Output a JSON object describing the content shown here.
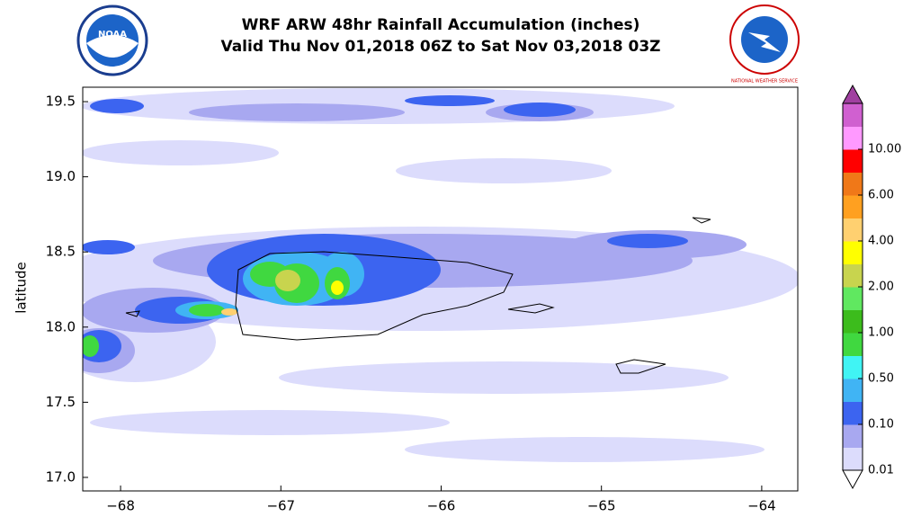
{
  "chart_data": {
    "type": "contour",
    "title": "WRF ARW 48hr Rainfall Accumulation (inches)",
    "subtitle": "Valid Thu Nov 01,2018 06Z to Sat Nov 03,2018 03Z",
    "logos": {
      "left": "NOAA",
      "right": "NATIONAL WEATHER SERVICE"
    },
    "ylabel": "latitude",
    "xlim": [
      -68.236,
      -63.775
    ],
    "ylim": [
      16.91,
      19.596
    ],
    "xticks": [
      {
        "value": -68,
        "label": "−68"
      },
      {
        "value": -67,
        "label": "−67"
      },
      {
        "value": -66,
        "label": "−66"
      },
      {
        "value": -65,
        "label": "−65"
      },
      {
        "value": -64,
        "label": "−64"
      }
    ],
    "yticks": [
      {
        "value": 17,
        "label": "17.0"
      },
      17.5,
      {
        "value": 18,
        "label": "18.0"
      },
      18.5,
      {
        "value": 19,
        "label": "19.0"
      },
      19.5
    ],
    "colorbar": {
      "colors": [
        "#dcdcfc",
        "#a8a8f0",
        "#3c64f0",
        "#40b4f4",
        "#40f4f4",
        "#40d840",
        "#3cbc1c",
        "#60e860",
        "#c8d44e",
        "#ffff00",
        "#ffd070",
        "#ffa020",
        "#f07818",
        "#ff0000",
        "#ff99ff",
        "#d060d0"
      ],
      "over_color": "#a040a0",
      "ticks": [
        0.01,
        {
          "value": 0.1,
          "label": "0.10"
        },
        {
          "value": 0.5,
          "label": "0.50"
        },
        {
          "value": 1,
          "label": "1.00"
        },
        {
          "value": 2,
          "label": "2.00"
        },
        {
          "value": 4,
          "label": "4.00"
        },
        {
          "value": 6,
          "label": "6.00"
        },
        {
          "value": 10,
          "label": "10.00"
        }
      ]
    }
  }
}
